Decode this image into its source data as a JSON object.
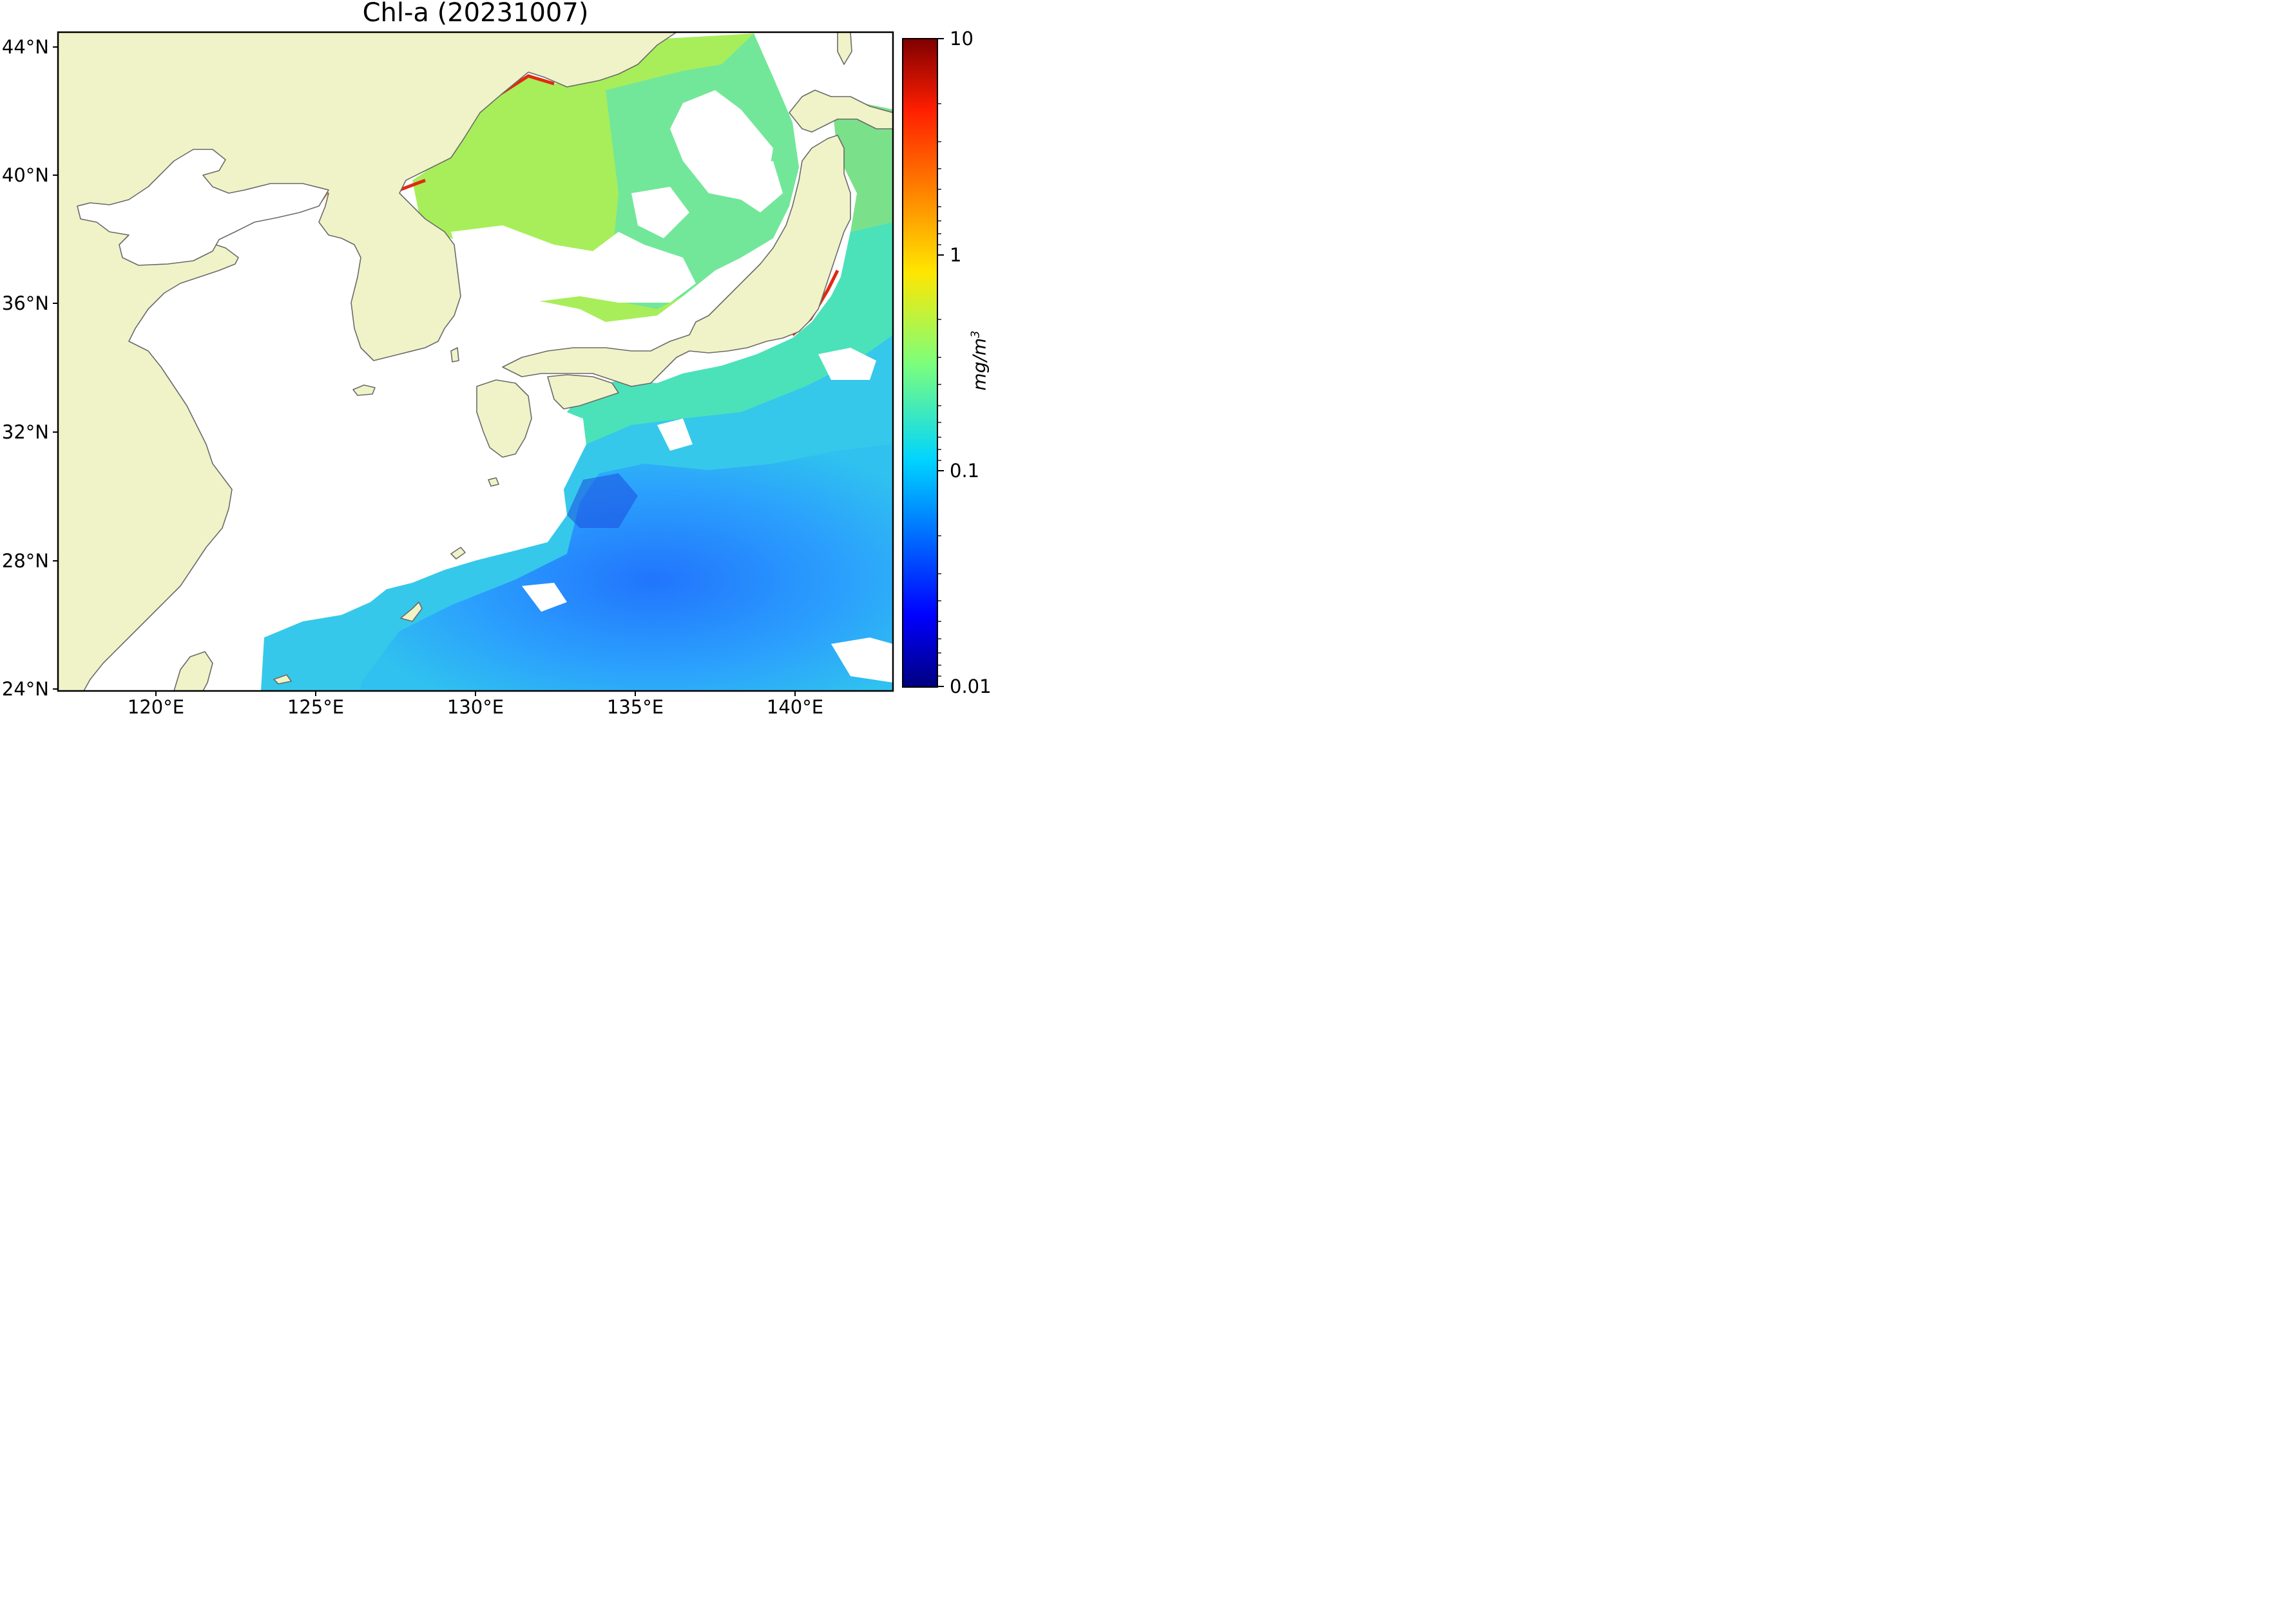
{
  "title": "Chl-a (20231007)",
  "map": {
    "land_color": "#f0f3c8",
    "coast_color": "#6a6a6a",
    "ocean_nodata_color": "#ffffff",
    "lon_range": [
      116.9,
      143.0
    ],
    "lat_range": [
      24.0,
      44.5
    ],
    "lat_ticks": [
      "44°N",
      "40°N",
      "36°N",
      "32°N",
      "28°N",
      "24°N"
    ],
    "lon_ticks": [
      "120°E",
      "125°E",
      "130°E",
      "135°E",
      "140°E"
    ]
  },
  "colorbar": {
    "label": "mg/m",
    "label_exp": "3",
    "scale": "log",
    "range": [
      0.01,
      10
    ],
    "tick_labels": [
      "10",
      "1",
      "0.1",
      "0.01"
    ],
    "colormap": "jet"
  }
}
